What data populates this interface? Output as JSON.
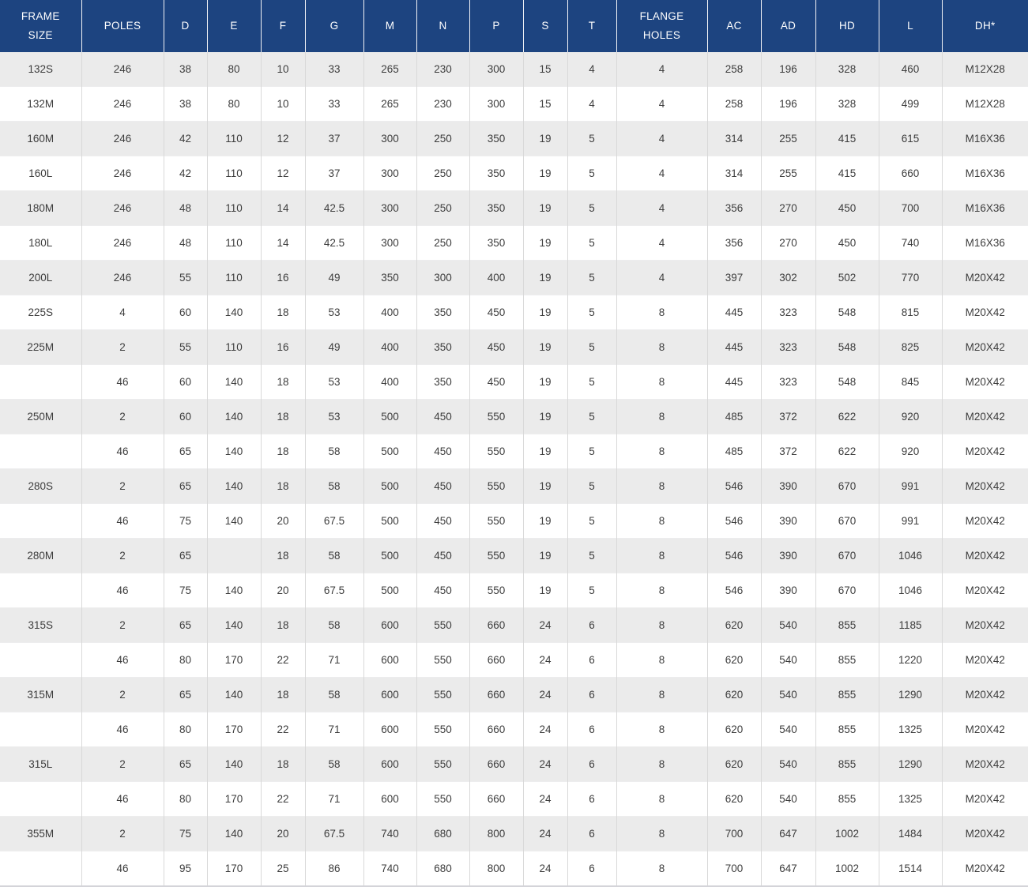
{
  "colors": {
    "header_bg": "#1d4480",
    "header_text": "#ffffff",
    "row_alt_bg": "#ebebeb",
    "row_bg": "#ffffff",
    "cell_text": "#3d3d3d",
    "grid_line": "#d9d9d9"
  },
  "chart_data": {
    "type": "table",
    "title": "",
    "columns": [
      "FRAME\nSIZE",
      "POLES",
      "D",
      "E",
      "F",
      "G",
      "M",
      "N",
      "P",
      "S",
      "T",
      "FLANGE\nHOLES",
      "AC",
      "AD",
      "HD",
      "L",
      "DH*"
    ],
    "rows": [
      [
        "132S",
        "246",
        "38",
        "80",
        "10",
        "33",
        "265",
        "230",
        "300",
        "15",
        "4",
        "4",
        "258",
        "196",
        "328",
        "460",
        "M12X28"
      ],
      [
        "132M",
        "246",
        "38",
        "80",
        "10",
        "33",
        "265",
        "230",
        "300",
        "15",
        "4",
        "4",
        "258",
        "196",
        "328",
        "499",
        "M12X28"
      ],
      [
        "160M",
        "246",
        "42",
        "110",
        "12",
        "37",
        "300",
        "250",
        "350",
        "19",
        "5",
        "4",
        "314",
        "255",
        "415",
        "615",
        "M16X36"
      ],
      [
        "160L",
        "246",
        "42",
        "110",
        "12",
        "37",
        "300",
        "250",
        "350",
        "19",
        "5",
        "4",
        "314",
        "255",
        "415",
        "660",
        "M16X36"
      ],
      [
        "180M",
        "246",
        "48",
        "110",
        "14",
        "42.5",
        "300",
        "250",
        "350",
        "19",
        "5",
        "4",
        "356",
        "270",
        "450",
        "700",
        "M16X36"
      ],
      [
        "180L",
        "246",
        "48",
        "110",
        "14",
        "42.5",
        "300",
        "250",
        "350",
        "19",
        "5",
        "4",
        "356",
        "270",
        "450",
        "740",
        "M16X36"
      ],
      [
        "200L",
        "246",
        "55",
        "110",
        "16",
        "49",
        "350",
        "300",
        "400",
        "19",
        "5",
        "4",
        "397",
        "302",
        "502",
        "770",
        "M20X42"
      ],
      [
        "225S",
        "4",
        "60",
        "140",
        "18",
        "53",
        "400",
        "350",
        "450",
        "19",
        "5",
        "8",
        "445",
        "323",
        "548",
        "815",
        "M20X42"
      ],
      [
        "225M",
        "2",
        "55",
        "110",
        "16",
        "49",
        "400",
        "350",
        "450",
        "19",
        "5",
        "8",
        "445",
        "323",
        "548",
        "825",
        "M20X42"
      ],
      [
        "",
        "46",
        "60",
        "140",
        "18",
        "53",
        "400",
        "350",
        "450",
        "19",
        "5",
        "8",
        "445",
        "323",
        "548",
        "845",
        "M20X42"
      ],
      [
        "250M",
        "2",
        "60",
        "140",
        "18",
        "53",
        "500",
        "450",
        "550",
        "19",
        "5",
        "8",
        "485",
        "372",
        "622",
        "920",
        "M20X42"
      ],
      [
        "",
        "46",
        "65",
        "140",
        "18",
        "58",
        "500",
        "450",
        "550",
        "19",
        "5",
        "8",
        "485",
        "372",
        "622",
        "920",
        "M20X42"
      ],
      [
        "280S",
        "2",
        "65",
        "140",
        "18",
        "58",
        "500",
        "450",
        "550",
        "19",
        "5",
        "8",
        "546",
        "390",
        "670",
        "991",
        "M20X42"
      ],
      [
        "",
        "46",
        "75",
        "140",
        "20",
        "67.5",
        "500",
        "450",
        "550",
        "19",
        "5",
        "8",
        "546",
        "390",
        "670",
        "991",
        "M20X42"
      ],
      [
        "280M",
        "2",
        "65",
        "",
        "18",
        "58",
        "500",
        "450",
        "550",
        "19",
        "5",
        "8",
        "546",
        "390",
        "670",
        "1046",
        "M20X42"
      ],
      [
        "",
        "46",
        "75",
        "140",
        "20",
        "67.5",
        "500",
        "450",
        "550",
        "19",
        "5",
        "8",
        "546",
        "390",
        "670",
        "1046",
        "M20X42"
      ],
      [
        "315S",
        "2",
        "65",
        "140",
        "18",
        "58",
        "600",
        "550",
        "660",
        "24",
        "6",
        "8",
        "620",
        "540",
        "855",
        "1185",
        "M20X42"
      ],
      [
        "",
        "46",
        "80",
        "170",
        "22",
        "71",
        "600",
        "550",
        "660",
        "24",
        "6",
        "8",
        "620",
        "540",
        "855",
        "1220",
        "M20X42"
      ],
      [
        "315M",
        "2",
        "65",
        "140",
        "18",
        "58",
        "600",
        "550",
        "660",
        "24",
        "6",
        "8",
        "620",
        "540",
        "855",
        "1290",
        "M20X42"
      ],
      [
        "",
        "46",
        "80",
        "170",
        "22",
        "71",
        "600",
        "550",
        "660",
        "24",
        "6",
        "8",
        "620",
        "540",
        "855",
        "1325",
        "M20X42"
      ],
      [
        "315L",
        "2",
        "65",
        "140",
        "18",
        "58",
        "600",
        "550",
        "660",
        "24",
        "6",
        "8",
        "620",
        "540",
        "855",
        "1290",
        "M20X42"
      ],
      [
        "",
        "46",
        "80",
        "170",
        "22",
        "71",
        "600",
        "550",
        "660",
        "24",
        "6",
        "8",
        "620",
        "540",
        "855",
        "1325",
        "M20X42"
      ],
      [
        "355M",
        "2",
        "75",
        "140",
        "20",
        "67.5",
        "740",
        "680",
        "800",
        "24",
        "6",
        "8",
        "700",
        "647",
        "1002",
        "1484",
        "M20X42"
      ],
      [
        "",
        "46",
        "95",
        "170",
        "25",
        "86",
        "740",
        "680",
        "800",
        "24",
        "6",
        "8",
        "700",
        "647",
        "1002",
        "1514",
        "M20X42"
      ]
    ]
  }
}
